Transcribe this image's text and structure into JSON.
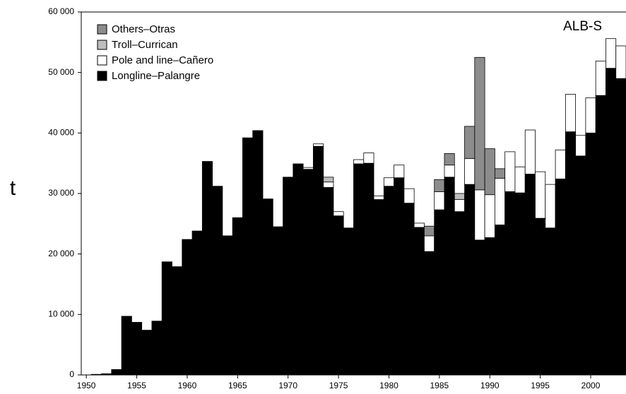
{
  "chart_data": {
    "type": "stacked-bar",
    "annotation": "ALB-S",
    "y_label": "t",
    "x": [
      1950,
      1951,
      1952,
      1953,
      1954,
      1955,
      1956,
      1957,
      1958,
      1959,
      1960,
      1961,
      1962,
      1963,
      1964,
      1965,
      1966,
      1967,
      1968,
      1969,
      1970,
      1971,
      1972,
      1973,
      1974,
      1975,
      1976,
      1977,
      1978,
      1979,
      1980,
      1981,
      1982,
      1983,
      1984,
      1985,
      1986,
      1987,
      1988,
      1989,
      1990,
      1991,
      1992,
      1993,
      1994,
      1995,
      1996,
      1997,
      1998,
      1999,
      2000,
      2001,
      2002,
      2003
    ],
    "xlim": [
      1949.5,
      2003.5
    ],
    "xticks": [
      1950,
      1955,
      1960,
      1965,
      1970,
      1975,
      1980,
      1985,
      1990,
      1995,
      2000
    ],
    "ylim": [
      0,
      60000
    ],
    "yticks": [
      0,
      {
        "value": 10000,
        "label": "10 000"
      },
      {
        "value": 20000,
        "label": "20 000"
      },
      {
        "value": 30000,
        "label": "30 000"
      },
      {
        "value": 40000,
        "label": "40 000"
      },
      {
        "value": 50000,
        "label": "50 000"
      },
      {
        "value": 60000,
        "label": "60 000"
      }
    ],
    "legend": "upper left",
    "series": [
      {
        "name": "Longline–Palangre",
        "color": "#000000",
        "values": [
          0,
          100,
          200,
          900,
          9700,
          8700,
          7400,
          8900,
          18700,
          17900,
          22400,
          23800,
          35300,
          31200,
          23000,
          26000,
          39200,
          40400,
          29100,
          24500,
          32700,
          34900,
          34000,
          37800,
          31000,
          26300,
          24300,
          34900,
          35000,
          29000,
          31200,
          32600,
          28400,
          24400,
          20400,
          27300,
          32700,
          27000,
          31500,
          22300,
          22700,
          24800,
          30300,
          30100,
          33200,
          25900,
          24300,
          32400,
          40200,
          36200,
          40000,
          46200,
          50700,
          49000
        ]
      },
      {
        "name": "Pole and line–Cañero",
        "color": "#ffffff",
        "values": [
          0,
          0,
          0,
          0,
          0,
          0,
          0,
          0,
          0,
          0,
          0,
          0,
          0,
          0,
          0,
          0,
          0,
          0,
          0,
          0,
          0,
          0,
          300,
          400,
          900,
          700,
          0,
          700,
          1700,
          600,
          1400,
          2100,
          2400,
          700,
          2600,
          3000,
          2000,
          2000,
          4300,
          8300,
          7100,
          7700,
          6600,
          4300,
          7300,
          7700,
          7200,
          4800,
          6200,
          3400,
          5800,
          5700,
          4900,
          5400
        ]
      },
      {
        "name": "Troll–Currican",
        "color": "#bdbdbd",
        "values": [
          0,
          0,
          0,
          0,
          0,
          0,
          0,
          0,
          0,
          0,
          0,
          0,
          0,
          0,
          0,
          0,
          0,
          0,
          0,
          0,
          0,
          0,
          0,
          0,
          800,
          0,
          0,
          0,
          0,
          0,
          0,
          0,
          0,
          0,
          0,
          0,
          0,
          1000,
          0,
          0,
          0,
          0,
          0,
          0,
          0,
          0,
          0,
          0,
          0,
          0,
          0,
          0,
          0,
          0
        ]
      },
      {
        "name": "Others–Otras",
        "color": "#8c8c8c",
        "values": [
          0,
          0,
          0,
          0,
          0,
          0,
          0,
          0,
          0,
          0,
          0,
          0,
          0,
          0,
          0,
          0,
          0,
          0,
          0,
          0,
          0,
          0,
          0,
          0,
          0,
          0,
          0,
          0,
          0,
          0,
          0,
          0,
          0,
          0,
          1600,
          2000,
          1900,
          0,
          5300,
          21900,
          7600,
          1600,
          0,
          0,
          0,
          0,
          0,
          0,
          0,
          0,
          0,
          0,
          0,
          0
        ]
      }
    ]
  }
}
